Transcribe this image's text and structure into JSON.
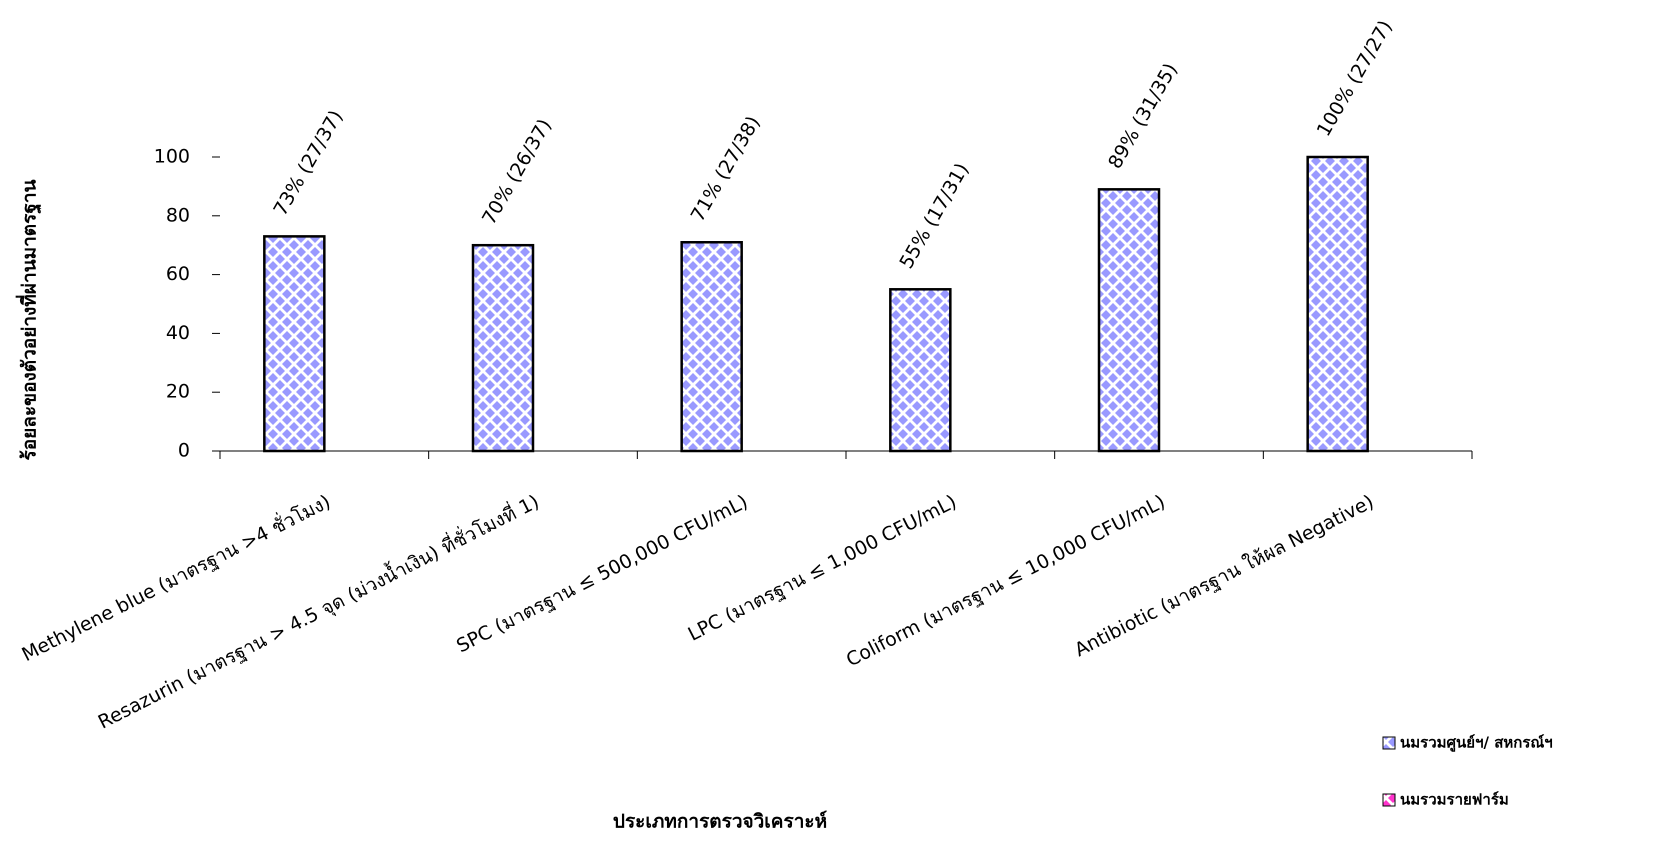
{
  "chart_data": {
    "type": "bar",
    "y_label": "ร้อยละของตัวอย่างที่ผ่านมาตรฐาน",
    "x_label": "ประเภทการตรวจวิเคราะห์",
    "categories": [
      "Methylene  blue (มาตรฐาน >4 ชั่วโมง)",
      "Resazurin (มาตรฐาน > 4.5 จุด (ม่วงน้ำเงิน) ที่ชั่วโมงที่ 1)",
      "SPC (มาตรฐาน ≤ 500,000 CFU/mL)",
      "LPC (มาตรฐาน ≤ 1,000 CFU/mL)",
      "Coliform (มาตรฐาน ≤ 10,000 CFU/mL)",
      "Antibiotic (มาตรฐาน ให้ผล Negative)"
    ],
    "series": [
      {
        "name": "นมรวมศูนย์ฯ/ สหกรณ์ฯ",
        "color": "#9999ff",
        "values": [
          73,
          70,
          71,
          55,
          89,
          100
        ],
        "value_labels": [
          "73% (27/37)",
          "70% (26/37)",
          "71% (27/38)",
          "55% (17/31)",
          "89% (31/35)",
          "100% (27/27)"
        ]
      },
      {
        "name": "นมรวมรายฟาร์ม",
        "color": "#ff33cc",
        "values": [
          null,
          null,
          null,
          null,
          null,
          null
        ]
      }
    ],
    "ylim": [
      0,
      100
    ],
    "yticks": [
      0,
      20,
      40,
      60,
      80,
      100
    ],
    "grid": false
  }
}
